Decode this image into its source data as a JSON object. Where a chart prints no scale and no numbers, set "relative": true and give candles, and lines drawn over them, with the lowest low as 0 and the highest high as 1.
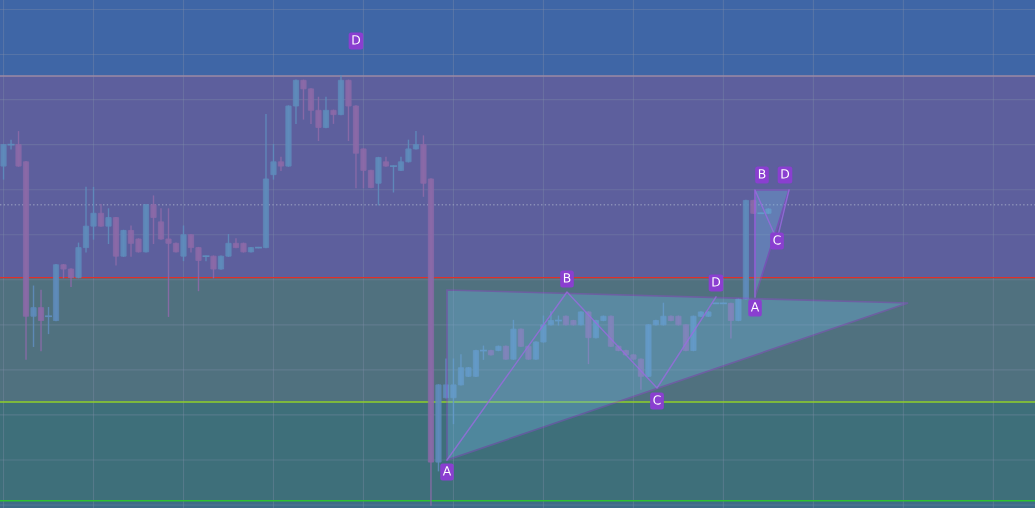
{
  "chart_data": {
    "type": "candlestick",
    "relative": true,
    "grid": true,
    "categories": [
      null,
      null,
      null,
      null,
      null,
      null,
      null,
      null,
      null,
      null,
      null,
      null,
      null,
      null,
      null,
      null,
      null,
      null,
      null,
      null,
      null,
      null,
      null,
      null,
      null,
      null,
      null,
      null,
      null,
      null,
      null,
      null,
      null,
      null,
      null,
      null,
      null,
      null,
      null,
      null,
      null,
      null,
      null,
      null,
      null,
      null,
      null,
      null,
      null,
      null,
      null,
      null,
      null,
      null,
      null,
      null,
      null,
      null,
      null,
      null,
      null,
      null,
      null,
      null,
      null,
      null,
      null,
      null,
      null,
      null,
      null,
      null,
      null,
      null,
      null,
      null,
      null,
      null,
      null,
      null,
      null,
      null,
      null,
      null,
      null,
      null,
      null,
      null,
      null,
      null,
      null,
      null,
      null,
      null,
      null,
      null,
      null,
      null,
      null,
      null,
      null,
      null,
      null
    ],
    "ohlc": [
      [
        0.79,
        0.84,
        0.76,
        0.84
      ],
      [
        0.84,
        0.85,
        0.83,
        0.84
      ],
      [
        0.84,
        0.87,
        0.79,
        0.79
      ],
      [
        0.8,
        0.8,
        0.34,
        0.44
      ],
      [
        0.44,
        0.51,
        0.37,
        0.46
      ],
      [
        0.46,
        0.5,
        0.36,
        0.43
      ],
      [
        0.44,
        0.46,
        0.4,
        0.44
      ],
      [
        0.43,
        0.56,
        0.43,
        0.56
      ],
      [
        0.56,
        0.56,
        0.53,
        0.55
      ],
      [
        0.55,
        0.55,
        0.51,
        0.53
      ],
      [
        0.53,
        0.61,
        0.53,
        0.6
      ],
      [
        0.6,
        0.74,
        0.59,
        0.65
      ],
      [
        0.65,
        0.74,
        0.62,
        0.68
      ],
      [
        0.68,
        0.7,
        0.65,
        0.65
      ],
      [
        0.65,
        0.69,
        0.61,
        0.67
      ],
      [
        0.67,
        0.67,
        0.56,
        0.58
      ],
      [
        0.58,
        0.64,
        0.58,
        0.64
      ],
      [
        0.64,
        0.65,
        0.58,
        0.61
      ],
      [
        0.62,
        0.62,
        0.59,
        0.59
      ],
      [
        0.59,
        0.7,
        0.59,
        0.7
      ],
      [
        0.7,
        0.72,
        0.61,
        0.67
      ],
      [
        0.66,
        0.69,
        0.62,
        0.62
      ],
      [
        0.62,
        0.69,
        0.44,
        0.61
      ],
      [
        0.61,
        0.61,
        0.59,
        0.59
      ],
      [
        0.58,
        0.65,
        0.57,
        0.63
      ],
      [
        0.63,
        0.63,
        0.59,
        0.6
      ],
      [
        0.6,
        0.6,
        0.5,
        0.57
      ],
      [
        0.58,
        0.58,
        0.57,
        0.58
      ],
      [
        0.58,
        0.58,
        0.53,
        0.55
      ],
      [
        0.55,
        0.58,
        0.55,
        0.58
      ],
      [
        0.58,
        0.63,
        0.58,
        0.61
      ],
      [
        0.61,
        0.62,
        0.6,
        0.6
      ],
      [
        0.61,
        0.61,
        0.59,
        0.59
      ],
      [
        0.59,
        0.6,
        0.59,
        0.6
      ],
      [
        0.6,
        0.6,
        0.6,
        0.6
      ],
      [
        0.6,
        0.91,
        0.6,
        0.76
      ],
      [
        0.77,
        0.84,
        0.76,
        0.8
      ],
      [
        0.8,
        0.81,
        0.78,
        0.79
      ],
      [
        0.79,
        0.93,
        0.79,
        0.93
      ],
      [
        0.93,
        0.99,
        0.89,
        0.99
      ],
      [
        0.99,
        0.99,
        0.9,
        0.97
      ],
      [
        0.97,
        0.97,
        0.89,
        0.92
      ],
      [
        0.92,
        0.95,
        0.85,
        0.88
      ],
      [
        0.88,
        0.95,
        0.88,
        0.92
      ],
      [
        0.92,
        0.92,
        0.89,
        0.91
      ],
      [
        0.91,
        1.0,
        0.91,
        0.99
      ],
      [
        0.99,
        0.99,
        0.85,
        0.93
      ],
      [
        0.93,
        0.93,
        0.74,
        0.82
      ],
      [
        0.83,
        0.83,
        0.74,
        0.78
      ],
      [
        0.78,
        0.78,
        0.74,
        0.74
      ],
      [
        0.75,
        0.81,
        0.7,
        0.81
      ],
      [
        0.8,
        0.81,
        0.79,
        0.79
      ],
      [
        0.79,
        0.79,
        0.73,
        0.79
      ],
      [
        0.78,
        0.81,
        0.78,
        0.8
      ],
      [
        0.8,
        0.85,
        0.8,
        0.83
      ],
      [
        0.83,
        0.87,
        0.83,
        0.84
      ],
      [
        0.84,
        0.86,
        0.72,
        0.75
      ],
      [
        0.76,
        0.76,
        0.0,
        0.1
      ],
      [
        0.1,
        0.28,
        0.08,
        0.28
      ],
      [
        0.25,
        0.34,
        0.25,
        0.28
      ],
      [
        0.25,
        0.34,
        0.19,
        0.28
      ],
      [
        0.28,
        0.35,
        0.28,
        0.32
      ],
      [
        0.3,
        0.32,
        0.3,
        0.32
      ],
      [
        0.3,
        0.36,
        0.3,
        0.36
      ],
      [
        0.36,
        0.37,
        0.34,
        0.36
      ],
      [
        0.36,
        0.36,
        0.35,
        0.35
      ],
      [
        0.36,
        0.37,
        0.36,
        0.37
      ],
      [
        0.37,
        0.37,
        0.34,
        0.34
      ],
      [
        0.34,
        0.43,
        0.34,
        0.41
      ],
      [
        0.41,
        0.41,
        0.37,
        0.37
      ],
      [
        0.37,
        0.37,
        0.34,
        0.34
      ],
      [
        0.34,
        0.38,
        0.34,
        0.38
      ],
      [
        0.38,
        0.44,
        0.38,
        0.42
      ],
      [
        0.42,
        0.45,
        0.42,
        0.43
      ],
      [
        0.43,
        0.44,
        0.42,
        0.43
      ],
      [
        0.44,
        0.44,
        0.42,
        0.42
      ],
      [
        0.43,
        0.43,
        0.42,
        0.42
      ],
      [
        0.42,
        0.45,
        0.42,
        0.45
      ],
      [
        0.45,
        0.45,
        0.33,
        0.39
      ],
      [
        0.39,
        0.43,
        0.39,
        0.43
      ],
      [
        0.43,
        0.44,
        0.43,
        0.44
      ],
      [
        0.44,
        0.44,
        0.37,
        0.37
      ],
      [
        0.37,
        0.37,
        0.36,
        0.36
      ],
      [
        0.36,
        0.36,
        0.35,
        0.35
      ],
      [
        0.35,
        0.35,
        0.34,
        0.34
      ],
      [
        0.34,
        0.34,
        0.27,
        0.3
      ],
      [
        0.3,
        0.42,
        0.3,
        0.42
      ],
      [
        0.42,
        0.43,
        0.42,
        0.43
      ],
      [
        0.42,
        0.47,
        0.42,
        0.44
      ],
      [
        0.44,
        0.44,
        0.43,
        0.43
      ],
      [
        0.44,
        0.44,
        0.42,
        0.42
      ],
      [
        0.42,
        0.42,
        0.36,
        0.36
      ],
      [
        0.36,
        0.44,
        0.36,
        0.44
      ],
      [
        0.44,
        0.45,
        0.44,
        0.45
      ],
      [
        0.44,
        0.45,
        0.44,
        0.45
      ],
      [
        0.47,
        0.47,
        0.47,
        0.47
      ],
      [
        0.47,
        0.47,
        0.47,
        0.47
      ],
      [
        0.47,
        0.47,
        0.39,
        0.43
      ],
      [
        0.43,
        0.48,
        0.43,
        0.48
      ],
      [
        0.48,
        0.71,
        0.48,
        0.71
      ],
      [
        0.71,
        0.71,
        0.68,
        0.68
      ],
      [
        0.68,
        0.68,
        0.68,
        0.68
      ],
      [
        0.68,
        0.69,
        0.68,
        0.69
      ]
    ],
    "bands": [
      {
        "axis": "y",
        "from": 1.0,
        "to": 1.18,
        "color": "#3f66a6"
      },
      {
        "axis": "y",
        "from": 0.53,
        "to": 1.0,
        "color": "#5d5f9d"
      },
      {
        "axis": "y",
        "from": 0.24,
        "to": 0.53,
        "color": "#50717f"
      },
      {
        "axis": "y",
        "from": 0.01,
        "to": 0.24,
        "color": "#3e6f7a"
      }
    ],
    "ref_lines": [
      {
        "axis": "y",
        "value": 1.0,
        "color": "#9c8aa4",
        "line_style": "solid"
      },
      {
        "axis": "y",
        "value": 0.7,
        "color": "#8a8fb8",
        "line_style": "dotted"
      },
      {
        "axis": "y",
        "value": 0.53,
        "color": "#e0302c",
        "line_style": "solid"
      },
      {
        "axis": "y",
        "value": 0.24,
        "color": "#8fd12a",
        "line_style": "solid"
      },
      {
        "axis": "y",
        "value": 0.01,
        "color": "#2ec22e",
        "line_style": "solid"
      }
    ],
    "annotations": [
      "D",
      "B",
      "D",
      "C",
      "A",
      "B",
      "D",
      "C",
      "A"
    ]
  }
}
